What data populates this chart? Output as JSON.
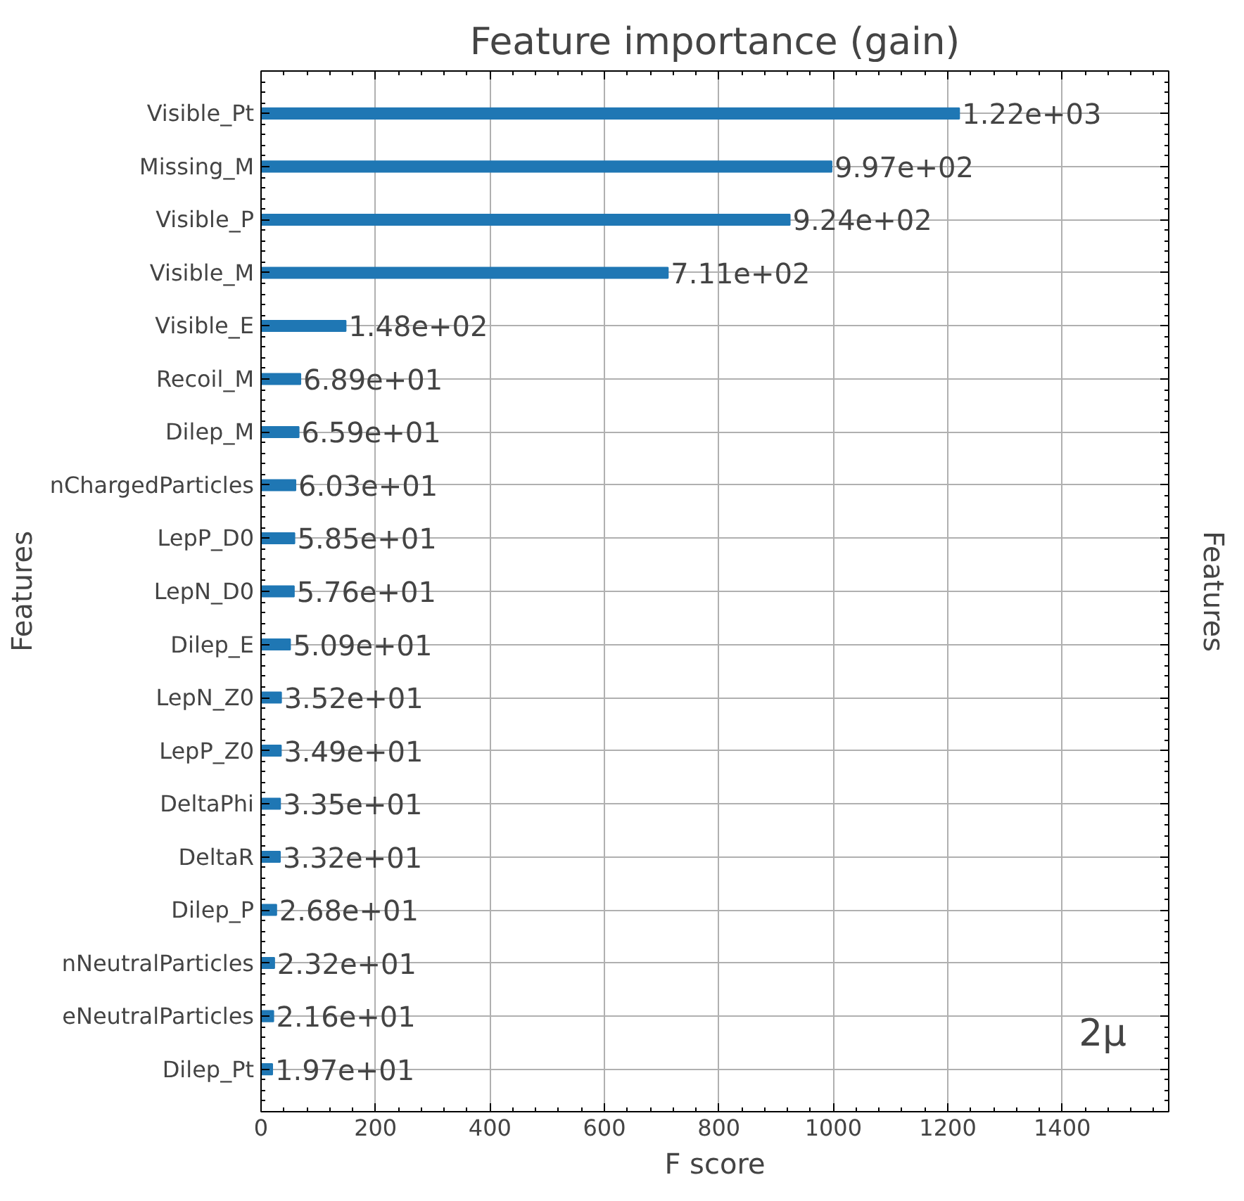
{
  "chart_data": {
    "type": "bar",
    "orientation": "horizontal",
    "title": "Feature importance (gain)",
    "xlabel": "F score",
    "ylabel": "Features",
    "y2label": "Features",
    "categories": [
      "Visible_Pt",
      "Missing_M",
      "Visible_P",
      "Visible_M",
      "Visible_E",
      "Recoil_M",
      "Dilep_M",
      "nChargedParticles",
      "LepP_D0",
      "LepN_D0",
      "Dilep_E",
      "LepN_Z0",
      "LepP_Z0",
      "DeltaPhi",
      "DeltaR",
      "Dilep_P",
      "nNeutralParticles",
      "eNeutralParticles",
      "Dilep_Pt"
    ],
    "values": [
      1220,
      997,
      924,
      711,
      148,
      68.9,
      65.9,
      60.3,
      58.5,
      57.6,
      50.9,
      35.2,
      34.9,
      33.5,
      33.2,
      26.8,
      23.2,
      21.6,
      19.7
    ],
    "value_labels": [
      "1.22e+03",
      "9.97e+02",
      "9.24e+02",
      "7.11e+02",
      "1.48e+02",
      "6.89e+01",
      "6.59e+01",
      "6.03e+01",
      "5.85e+01",
      "5.76e+01",
      "5.09e+01",
      "3.52e+01",
      "3.49e+01",
      "3.35e+01",
      "3.32e+01",
      "2.68e+01",
      "2.32e+01",
      "2.16e+01",
      "1.97e+01"
    ],
    "color": "#1f77b4",
    "xlim": [
      0,
      1586
    ],
    "xticks": [
      0,
      200,
      400,
      600,
      800,
      1000,
      1200,
      1400
    ],
    "grid": true,
    "annotations": [
      "2μ"
    ]
  }
}
